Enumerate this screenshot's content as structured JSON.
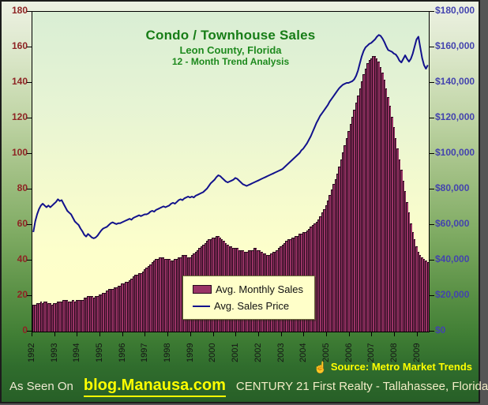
{
  "chart": {
    "title": "Condo / Townhouse Sales",
    "subtitle1": "Leon County, Florida",
    "subtitle2": "12 - Month Trend Analysis",
    "title_color": "#177d17"
  },
  "legend": {
    "items": [
      {
        "label": "Avg. Monthly Sales",
        "type": "bar",
        "color": "#993366"
      },
      {
        "label": "Avg. Sales Price",
        "type": "line",
        "color": "#12128c"
      }
    ]
  },
  "axes": {
    "left_labels": [
      "0",
      "20",
      "40",
      "60",
      "80",
      "100",
      "120",
      "140",
      "160",
      "180"
    ],
    "left_color": "#8e2424",
    "right_labels": [
      "$0",
      "$20,000",
      "$40,000",
      "$60,000",
      "$80,000",
      "$100,000",
      "$120,000",
      "$140,000",
      "$160,000",
      "$180,000"
    ],
    "right_color": "#4343ae",
    "year_labels": [
      "1992",
      "1993",
      "1994",
      "1995",
      "1996",
      "1997",
      "1998",
      "1999",
      "2000",
      "2001",
      "2002",
      "2003",
      "2004",
      "2005",
      "2006",
      "2007",
      "2008",
      "2009"
    ]
  },
  "footer": {
    "hand_icon": "☝",
    "source_text": "Source: Metro Market Trends",
    "as_seen_on": "As Seen On",
    "blog": "blog.Manausa.com",
    "century": "CENTURY 21 First Realty - Tallahassee, Florida"
  },
  "chart_data": {
    "type": "bar",
    "combo": "bar+line",
    "x_start": "1992-01",
    "x_end": "2009-06",
    "x_unit": "month",
    "left_ylim": [
      0,
      180
    ],
    "right_ylim": [
      0,
      180000
    ],
    "grid": false,
    "legend_position": "inside-bottom-center",
    "series": [
      {
        "name": "Avg. Monthly Sales",
        "type": "bar",
        "axis": "left",
        "color": "#993366",
        "values": [
          15,
          15,
          16,
          16,
          17,
          16,
          17,
          17,
          16,
          16,
          15,
          16,
          16,
          17,
          17,
          17,
          18,
          18,
          18,
          17,
          17,
          18,
          17,
          18,
          18,
          18,
          18,
          19,
          19,
          20,
          20,
          20,
          19,
          20,
          20,
          21,
          21,
          22,
          22,
          23,
          24,
          24,
          24,
          25,
          25,
          26,
          26,
          27,
          27,
          28,
          28,
          29,
          30,
          31,
          32,
          32,
          33,
          33,
          34,
          35,
          36,
          37,
          38,
          39,
          40,
          41,
          41,
          42,
          42,
          42,
          41,
          41,
          41,
          40,
          40,
          41,
          41,
          42,
          42,
          43,
          43,
          43,
          42,
          42,
          43,
          44,
          45,
          46,
          47,
          48,
          49,
          50,
          51,
          52,
          52,
          53,
          53,
          54,
          54,
          53,
          52,
          51,
          50,
          49,
          48,
          48,
          47,
          47,
          47,
          46,
          46,
          46,
          45,
          45,
          46,
          46,
          46,
          47,
          47,
          46,
          46,
          45,
          44,
          44,
          43,
          43,
          44,
          45,
          45,
          46,
          47,
          48,
          49,
          50,
          51,
          52,
          52,
          53,
          53,
          54,
          54,
          55,
          55,
          56,
          56,
          57,
          58,
          59,
          60,
          61,
          62,
          63,
          65,
          67,
          69,
          71,
          74,
          77,
          80,
          83,
          86,
          89,
          93,
          97,
          101,
          105,
          109,
          113,
          117,
          121,
          125,
          129,
          133,
          137,
          141,
          145,
          148,
          151,
          153,
          154,
          155,
          155,
          154,
          152,
          149,
          146,
          142,
          137,
          132,
          127,
          121,
          115,
          109,
          103,
          97,
          91,
          85,
          79,
          73,
          67,
          61,
          56,
          52,
          48,
          45,
          43,
          42,
          41,
          40,
          39
        ]
      },
      {
        "name": "Avg. Sales Price",
        "type": "line",
        "axis": "right",
        "color": "#12128c",
        "unit": "USD_thousands",
        "values": [
          56,
          62,
          66,
          69,
          71,
          72,
          71,
          70,
          71,
          70,
          71,
          72,
          73,
          74.5,
          73.5,
          74,
          72,
          70,
          68,
          67,
          66,
          64,
          62,
          61,
          60,
          58,
          56.5,
          54.5,
          53.5,
          55,
          54,
          53,
          52.5,
          53,
          54,
          55.5,
          57,
          58,
          58.5,
          59,
          60,
          61,
          61.5,
          61,
          60.5,
          61,
          61,
          61.5,
          62,
          62.5,
          63,
          63.5,
          63,
          64,
          64.5,
          65,
          65.5,
          65,
          65.5,
          66,
          66,
          66.5,
          67.5,
          68,
          67.5,
          68.5,
          69,
          69.5,
          70,
          70.5,
          70,
          70.5,
          71,
          72,
          72.5,
          72,
          73,
          74,
          74.5,
          74,
          75,
          75.5,
          76,
          75.5,
          76,
          75.5,
          76.5,
          77,
          77.5,
          78,
          78.5,
          79.5,
          80.5,
          82,
          83.5,
          84.5,
          85.5,
          87,
          88,
          87.5,
          86.5,
          85.5,
          84.5,
          84,
          84.5,
          85,
          85.5,
          86.5,
          86,
          85,
          84,
          83,
          82.5,
          82,
          82.5,
          83,
          83.5,
          84,
          84.5,
          85,
          85.5,
          86,
          86.5,
          87,
          87.5,
          88,
          88.5,
          89,
          89.5,
          90,
          90.5,
          91,
          91.5,
          92.5,
          93.5,
          94.5,
          95.5,
          96.5,
          97.5,
          98.5,
          99.5,
          100.5,
          102,
          103,
          104.5,
          106,
          108,
          110,
          112.5,
          115,
          117.5,
          119.5,
          121.5,
          123,
          124.5,
          126,
          127.5,
          129.5,
          131,
          132.5,
          134,
          135.5,
          137,
          138,
          139,
          139.5,
          140,
          140,
          140.5,
          141,
          142,
          144,
          147,
          151,
          155,
          158,
          160,
          161,
          162,
          162.5,
          163.5,
          164.5,
          166,
          167,
          166.5,
          165,
          163,
          160.5,
          158.5,
          158,
          157.5,
          156.5,
          156,
          154.5,
          152.5,
          151.5,
          153.5,
          155.5,
          153.5,
          152,
          153.5,
          156.5,
          160.5,
          164.5,
          166,
          160,
          154,
          150,
          148,
          150
        ]
      }
    ]
  }
}
